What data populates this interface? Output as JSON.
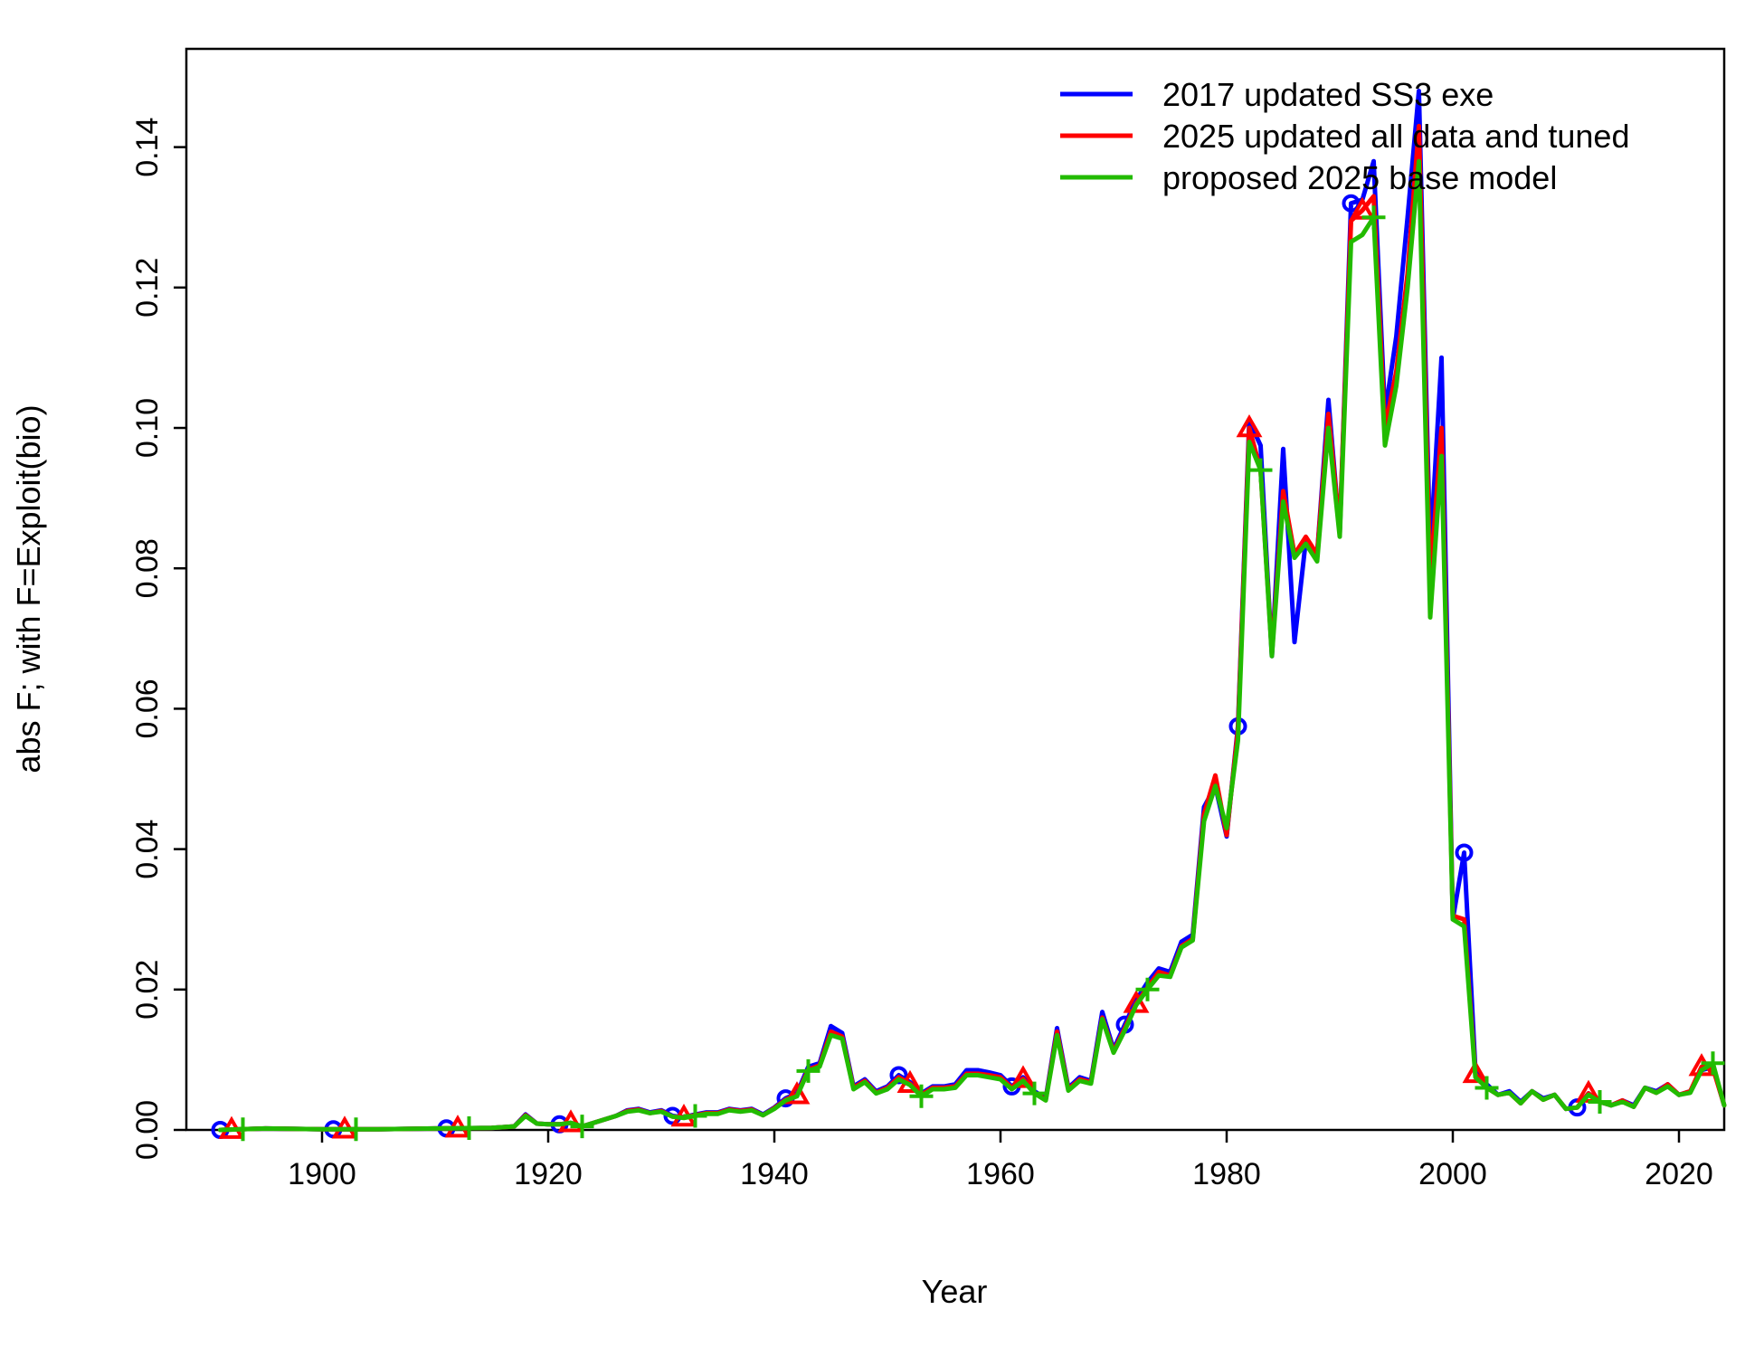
{
  "chart_data": {
    "type": "line",
    "title": "",
    "xlabel": "Year",
    "ylabel": "abs F; with F=Exploit(bio)",
    "xlim": [
      1888,
      2024
    ],
    "ylim": [
      0,
      0.154
    ],
    "x_ticks": [
      "1900",
      "1920",
      "1940",
      "1960",
      "1980",
      "2000",
      "2020"
    ],
    "y_ticks": [
      "0.00",
      "0.02",
      "0.04",
      "0.06",
      "0.08",
      "0.10",
      "0.12",
      "0.14"
    ],
    "legend_position": "top-right",
    "grid": false,
    "series": [
      {
        "name": "2017 updated SS3 exe",
        "color": "#0000ff",
        "marker": "circle",
        "marker_years": [
          1891,
          1901,
          1911,
          1921,
          1931,
          1941,
          1951,
          1961,
          1971,
          1981,
          1991,
          2001,
          2011
        ],
        "x": [
          1891,
          1895,
          1900,
          1905,
          1910,
          1915,
          1917,
          1918,
          1919,
          1920,
          1921,
          1922,
          1923,
          1924,
          1925,
          1926,
          1927,
          1928,
          1929,
          1930,
          1931,
          1932,
          1933,
          1934,
          1935,
          1936,
          1937,
          1938,
          1939,
          1940,
          1941,
          1942,
          1943,
          1944,
          1945,
          1946,
          1947,
          1948,
          1949,
          1950,
          1951,
          1952,
          1953,
          1954,
          1955,
          1956,
          1957,
          1958,
          1959,
          1960,
          1961,
          1962,
          1963,
          1964,
          1965,
          1966,
          1967,
          1968,
          1969,
          1970,
          1971,
          1972,
          1973,
          1974,
          1975,
          1976,
          1977,
          1978,
          1979,
          1980,
          1981,
          1982,
          1983,
          1984,
          1985,
          1986,
          1987,
          1988,
          1989,
          1990,
          1991,
          1992,
          1993,
          1994,
          1995,
          1996,
          1997,
          1998,
          1999,
          2000,
          2001,
          2002,
          2003,
          2004,
          2005,
          2006,
          2007,
          2008,
          2009,
          2010,
          2011,
          2012,
          2013,
          2014,
          2015,
          2016,
          2017,
          2018,
          2019,
          2020,
          2021,
          2022,
          2023,
          2024
        ],
        "y": [
          0.0,
          0.0002,
          0.0001,
          0.0001,
          0.0002,
          0.0003,
          0.0005,
          0.0022,
          0.0009,
          0.0008,
          0.0008,
          0.001,
          0.0005,
          0.001,
          0.0015,
          0.002,
          0.0028,
          0.003,
          0.0025,
          0.0028,
          0.002,
          0.0018,
          0.0022,
          0.0025,
          0.0025,
          0.003,
          0.0028,
          0.003,
          0.0022,
          0.0032,
          0.0045,
          0.0052,
          0.009,
          0.0095,
          0.0148,
          0.0138,
          0.0062,
          0.0072,
          0.0055,
          0.0062,
          0.0078,
          0.0068,
          0.0052,
          0.0062,
          0.0062,
          0.0065,
          0.0085,
          0.0085,
          0.0082,
          0.0078,
          0.0062,
          0.0075,
          0.0055,
          0.0045,
          0.0145,
          0.006,
          0.0075,
          0.007,
          0.0168,
          0.0115,
          0.015,
          0.0185,
          0.021,
          0.023,
          0.0225,
          0.0268,
          0.0278,
          0.046,
          0.049,
          0.0418,
          0.0575,
          0.101,
          0.0975,
          0.0675,
          0.097,
          0.0695,
          0.084,
          0.082,
          0.104,
          0.085,
          0.132,
          0.1325,
          0.138,
          0.102,
          0.113,
          0.13,
          0.148,
          0.082,
          0.11,
          0.03,
          0.0395,
          0.0085,
          0.0065,
          0.005,
          0.0055,
          0.004,
          0.0055,
          0.0045,
          0.005,
          0.003,
          0.0032,
          0.0052,
          0.004,
          0.0035,
          0.0042,
          0.0035,
          0.006,
          0.0055,
          0.0065,
          0.005,
          0.0055,
          0.0085,
          0.009,
          0.0035
        ]
      },
      {
        "name": "2025 updated all data and tuned",
        "color": "#ff0000",
        "marker": "triangle",
        "marker_years": [
          1892,
          1902,
          1912,
          1922,
          1932,
          1942,
          1952,
          1962,
          1972,
          1982,
          1992,
          2002,
          2012,
          2022
        ],
        "x": [
          1891,
          1895,
          1900,
          1905,
          1910,
          1915,
          1917,
          1918,
          1919,
          1920,
          1921,
          1922,
          1923,
          1924,
          1925,
          1926,
          1927,
          1928,
          1929,
          1930,
          1931,
          1932,
          1933,
          1934,
          1935,
          1936,
          1937,
          1938,
          1939,
          1940,
          1941,
          1942,
          1943,
          1944,
          1945,
          1946,
          1947,
          1948,
          1949,
          1950,
          1951,
          1952,
          1953,
          1954,
          1955,
          1956,
          1957,
          1958,
          1959,
          1960,
          1961,
          1962,
          1963,
          1964,
          1965,
          1966,
          1967,
          1968,
          1969,
          1970,
          1971,
          1972,
          1973,
          1974,
          1975,
          1976,
          1977,
          1978,
          1979,
          1980,
          1981,
          1982,
          1983,
          1984,
          1985,
          1986,
          1987,
          1988,
          1989,
          1990,
          1991,
          1992,
          1993,
          1994,
          1995,
          1996,
          1997,
          1998,
          1999,
          2000,
          2001,
          2002,
          2003,
          2004,
          2005,
          2006,
          2007,
          2008,
          2009,
          2010,
          2011,
          2012,
          2013,
          2014,
          2015,
          2016,
          2017,
          2018,
          2019,
          2020,
          2021,
          2022,
          2023,
          2024
        ],
        "y": [
          0.0,
          0.0002,
          0.0001,
          0.0001,
          0.0002,
          0.0003,
          0.0005,
          0.0021,
          0.0009,
          0.0008,
          0.0008,
          0.001,
          0.0005,
          0.001,
          0.0015,
          0.002,
          0.0027,
          0.0029,
          0.0024,
          0.0027,
          0.0019,
          0.0018,
          0.0021,
          0.0024,
          0.0024,
          0.0029,
          0.0027,
          0.0029,
          0.0021,
          0.0031,
          0.0043,
          0.005,
          0.0086,
          0.0092,
          0.014,
          0.0133,
          0.006,
          0.007,
          0.0053,
          0.006,
          0.0075,
          0.0066,
          0.005,
          0.006,
          0.006,
          0.0062,
          0.008,
          0.008,
          0.0078,
          0.0075,
          0.006,
          0.0073,
          0.0053,
          0.0043,
          0.014,
          0.0058,
          0.0072,
          0.0068,
          0.016,
          0.0112,
          0.0145,
          0.018,
          0.0203,
          0.0225,
          0.022,
          0.0262,
          0.0272,
          0.045,
          0.0505,
          0.042,
          0.057,
          0.1,
          0.094,
          0.068,
          0.091,
          0.082,
          0.0845,
          0.082,
          0.102,
          0.0855,
          0.1295,
          0.131,
          0.133,
          0.1,
          0.108,
          0.122,
          0.143,
          0.078,
          0.1,
          0.0305,
          0.03,
          0.008,
          0.006,
          0.005,
          0.0053,
          0.0038,
          0.0055,
          0.0043,
          0.005,
          0.003,
          0.0032,
          0.0052,
          0.004,
          0.0035,
          0.0042,
          0.0033,
          0.006,
          0.0053,
          0.0065,
          0.005,
          0.0055,
          0.009,
          0.0088,
          0.0035
        ]
      },
      {
        "name": "proposed 2025 base model",
        "color": "#22bb00",
        "marker": "plus",
        "marker_years": [
          1893,
          1903,
          1913,
          1923,
          1933,
          1943,
          1953,
          1963,
          1973,
          1983,
          1993,
          2003,
          2013,
          2023
        ],
        "x": [
          1891,
          1895,
          1900,
          1905,
          1910,
          1915,
          1917,
          1918,
          1919,
          1920,
          1921,
          1922,
          1923,
          1924,
          1925,
          1926,
          1927,
          1928,
          1929,
          1930,
          1931,
          1932,
          1933,
          1934,
          1935,
          1936,
          1937,
          1938,
          1939,
          1940,
          1941,
          1942,
          1943,
          1944,
          1945,
          1946,
          1947,
          1948,
          1949,
          1950,
          1951,
          1952,
          1953,
          1954,
          1955,
          1956,
          1957,
          1958,
          1959,
          1960,
          1961,
          1962,
          1963,
          1964,
          1965,
          1966,
          1967,
          1968,
          1969,
          1970,
          1971,
          1972,
          1973,
          1974,
          1975,
          1976,
          1977,
          1978,
          1979,
          1980,
          1981,
          1982,
          1983,
          1984,
          1985,
          1986,
          1987,
          1988,
          1989,
          1990,
          1991,
          1992,
          1993,
          1994,
          1995,
          1996,
          1997,
          1998,
          1999,
          2000,
          2001,
          2002,
          2003,
          2004,
          2005,
          2006,
          2007,
          2008,
          2009,
          2010,
          2011,
          2012,
          2013,
          2014,
          2015,
          2016,
          2017,
          2018,
          2019,
          2020,
          2021,
          2022,
          2023,
          2024
        ],
        "y": [
          0.0,
          0.0002,
          0.0001,
          0.0001,
          0.0002,
          0.0003,
          0.0005,
          0.002,
          0.0009,
          0.0008,
          0.0008,
          0.001,
          0.0005,
          0.001,
          0.0015,
          0.002,
          0.0026,
          0.0028,
          0.0024,
          0.0026,
          0.0019,
          0.0017,
          0.002,
          0.0023,
          0.0023,
          0.0028,
          0.0026,
          0.0028,
          0.0021,
          0.003,
          0.0042,
          0.0048,
          0.0084,
          0.009,
          0.0135,
          0.013,
          0.0058,
          0.0068,
          0.0052,
          0.0058,
          0.0072,
          0.0064,
          0.0048,
          0.0058,
          0.0058,
          0.006,
          0.0078,
          0.0078,
          0.0075,
          0.0072,
          0.0058,
          0.007,
          0.0052,
          0.0042,
          0.0135,
          0.0056,
          0.007,
          0.0066,
          0.0158,
          0.011,
          0.0142,
          0.0178,
          0.02,
          0.022,
          0.0218,
          0.026,
          0.027,
          0.044,
          0.049,
          0.043,
          0.0555,
          0.098,
          0.094,
          0.0675,
          0.0895,
          0.0815,
          0.0835,
          0.081,
          0.1,
          0.0845,
          0.1265,
          0.1275,
          0.13,
          0.0975,
          0.106,
          0.12,
          0.138,
          0.073,
          0.096,
          0.03,
          0.029,
          0.0075,
          0.006,
          0.005,
          0.0053,
          0.0038,
          0.0055,
          0.0043,
          0.005,
          0.003,
          0.0032,
          0.005,
          0.004,
          0.0035,
          0.004,
          0.0033,
          0.006,
          0.0053,
          0.0062,
          0.005,
          0.0053,
          0.0085,
          0.0095,
          0.0035
        ]
      }
    ]
  }
}
